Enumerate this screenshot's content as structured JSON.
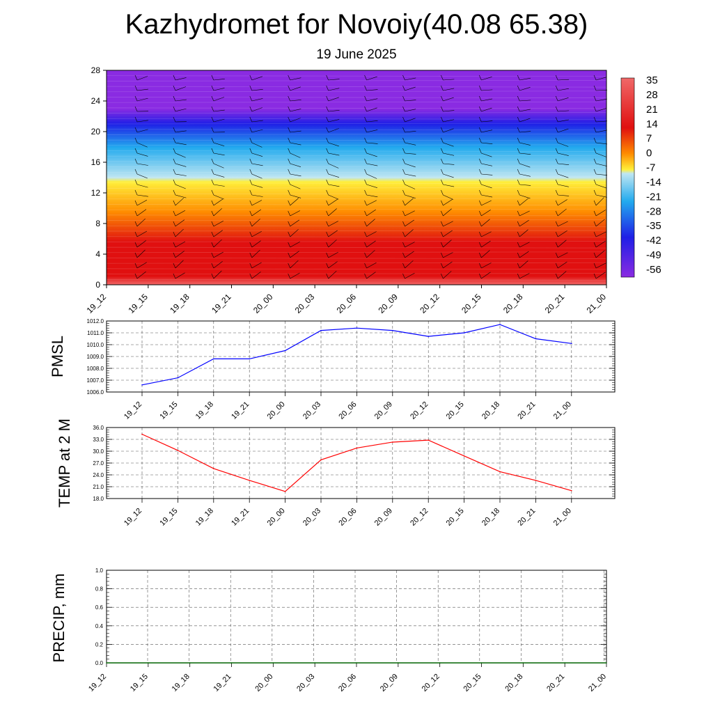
{
  "title": "Kazhydromet for Novoiy(40.08 65.38)",
  "subtitle": "19 June 2025",
  "chart_data": [
    {
      "type": "heatmap",
      "yticks": [
        0,
        4,
        8,
        12,
        16,
        20,
        24,
        28
      ],
      "ylim": [
        0,
        28
      ],
      "xticks": [
        "19_12",
        "19_15",
        "19_18",
        "19_21",
        "20_00",
        "20_03",
        "20_06",
        "20_09",
        "20_12",
        "20_15",
        "20_18",
        "20_21",
        "21_00"
      ],
      "colorbar_labels": [
        35,
        28,
        21,
        14,
        7,
        0,
        -7,
        -14,
        -21,
        -28,
        -35,
        -42,
        -49,
        -56
      ],
      "colorbar_range": [
        -60,
        40
      ],
      "colors": {
        "cold": "#8a2be2",
        "blue": "#1f1fe6",
        "cyan": "#22aaee",
        "light": "#bfe6f2",
        "yellow": "#ffef3a",
        "orange": "#ff8c00",
        "red": "#e01010",
        "pink": "#f06868"
      }
    },
    {
      "type": "line",
      "ylabel": "PMSL",
      "x": [
        "19_12",
        "19_15",
        "19_18",
        "19_21",
        "20_00",
        "20_03",
        "20_06",
        "20_09",
        "20_12",
        "20_15",
        "20_18",
        "20_21",
        "21_00"
      ],
      "ylim": [
        1006.0,
        1012.0
      ],
      "yticks": [
        "1006.0",
        "1007.0",
        "1008.0",
        "1009.0",
        "1010.0",
        "1011.0",
        "1012.0"
      ],
      "values": [
        1006.6,
        1007.2,
        1008.8,
        1008.8,
        1009.5,
        1011.2,
        1011.4,
        1011.2,
        1010.7,
        1011.0,
        1011.7,
        1010.5,
        1010.1
      ],
      "color": "#0000ff",
      "grid": true
    },
    {
      "type": "line",
      "ylabel": "TEMP at 2 M",
      "x": [
        "19_12",
        "19_15",
        "19_18",
        "19_21",
        "20_00",
        "20_03",
        "20_06",
        "20_09",
        "20_12",
        "20_15",
        "20_18",
        "20_21",
        "21_00"
      ],
      "ylim": [
        18.0,
        36.0
      ],
      "yticks": [
        "18.0",
        "21.0",
        "24.0",
        "27.0",
        "30.0",
        "33.0",
        "36.0"
      ],
      "values": [
        34.3,
        30.2,
        25.6,
        22.6,
        19.8,
        27.8,
        30.8,
        32.3,
        32.8,
        28.8,
        24.8,
        22.6,
        20.0
      ],
      "color": "#ff0000",
      "grid": true
    },
    {
      "type": "line",
      "ylabel": "PRECIP, mm",
      "x": [
        "19_12",
        "19_15",
        "19_18",
        "19_21",
        "20_00",
        "20_03",
        "20_06",
        "20_09",
        "20_12",
        "20_15",
        "20_18",
        "20_21",
        "21_00"
      ],
      "ylim": [
        0.0,
        1.0
      ],
      "yticks": [
        "0.0",
        "0.2",
        "0.4",
        "0.6",
        "0.8",
        "1.0"
      ],
      "values": [
        0,
        0,
        0,
        0,
        0,
        0,
        0,
        0,
        0,
        0,
        0,
        0,
        0
      ],
      "color": "#006400",
      "grid": true
    }
  ]
}
